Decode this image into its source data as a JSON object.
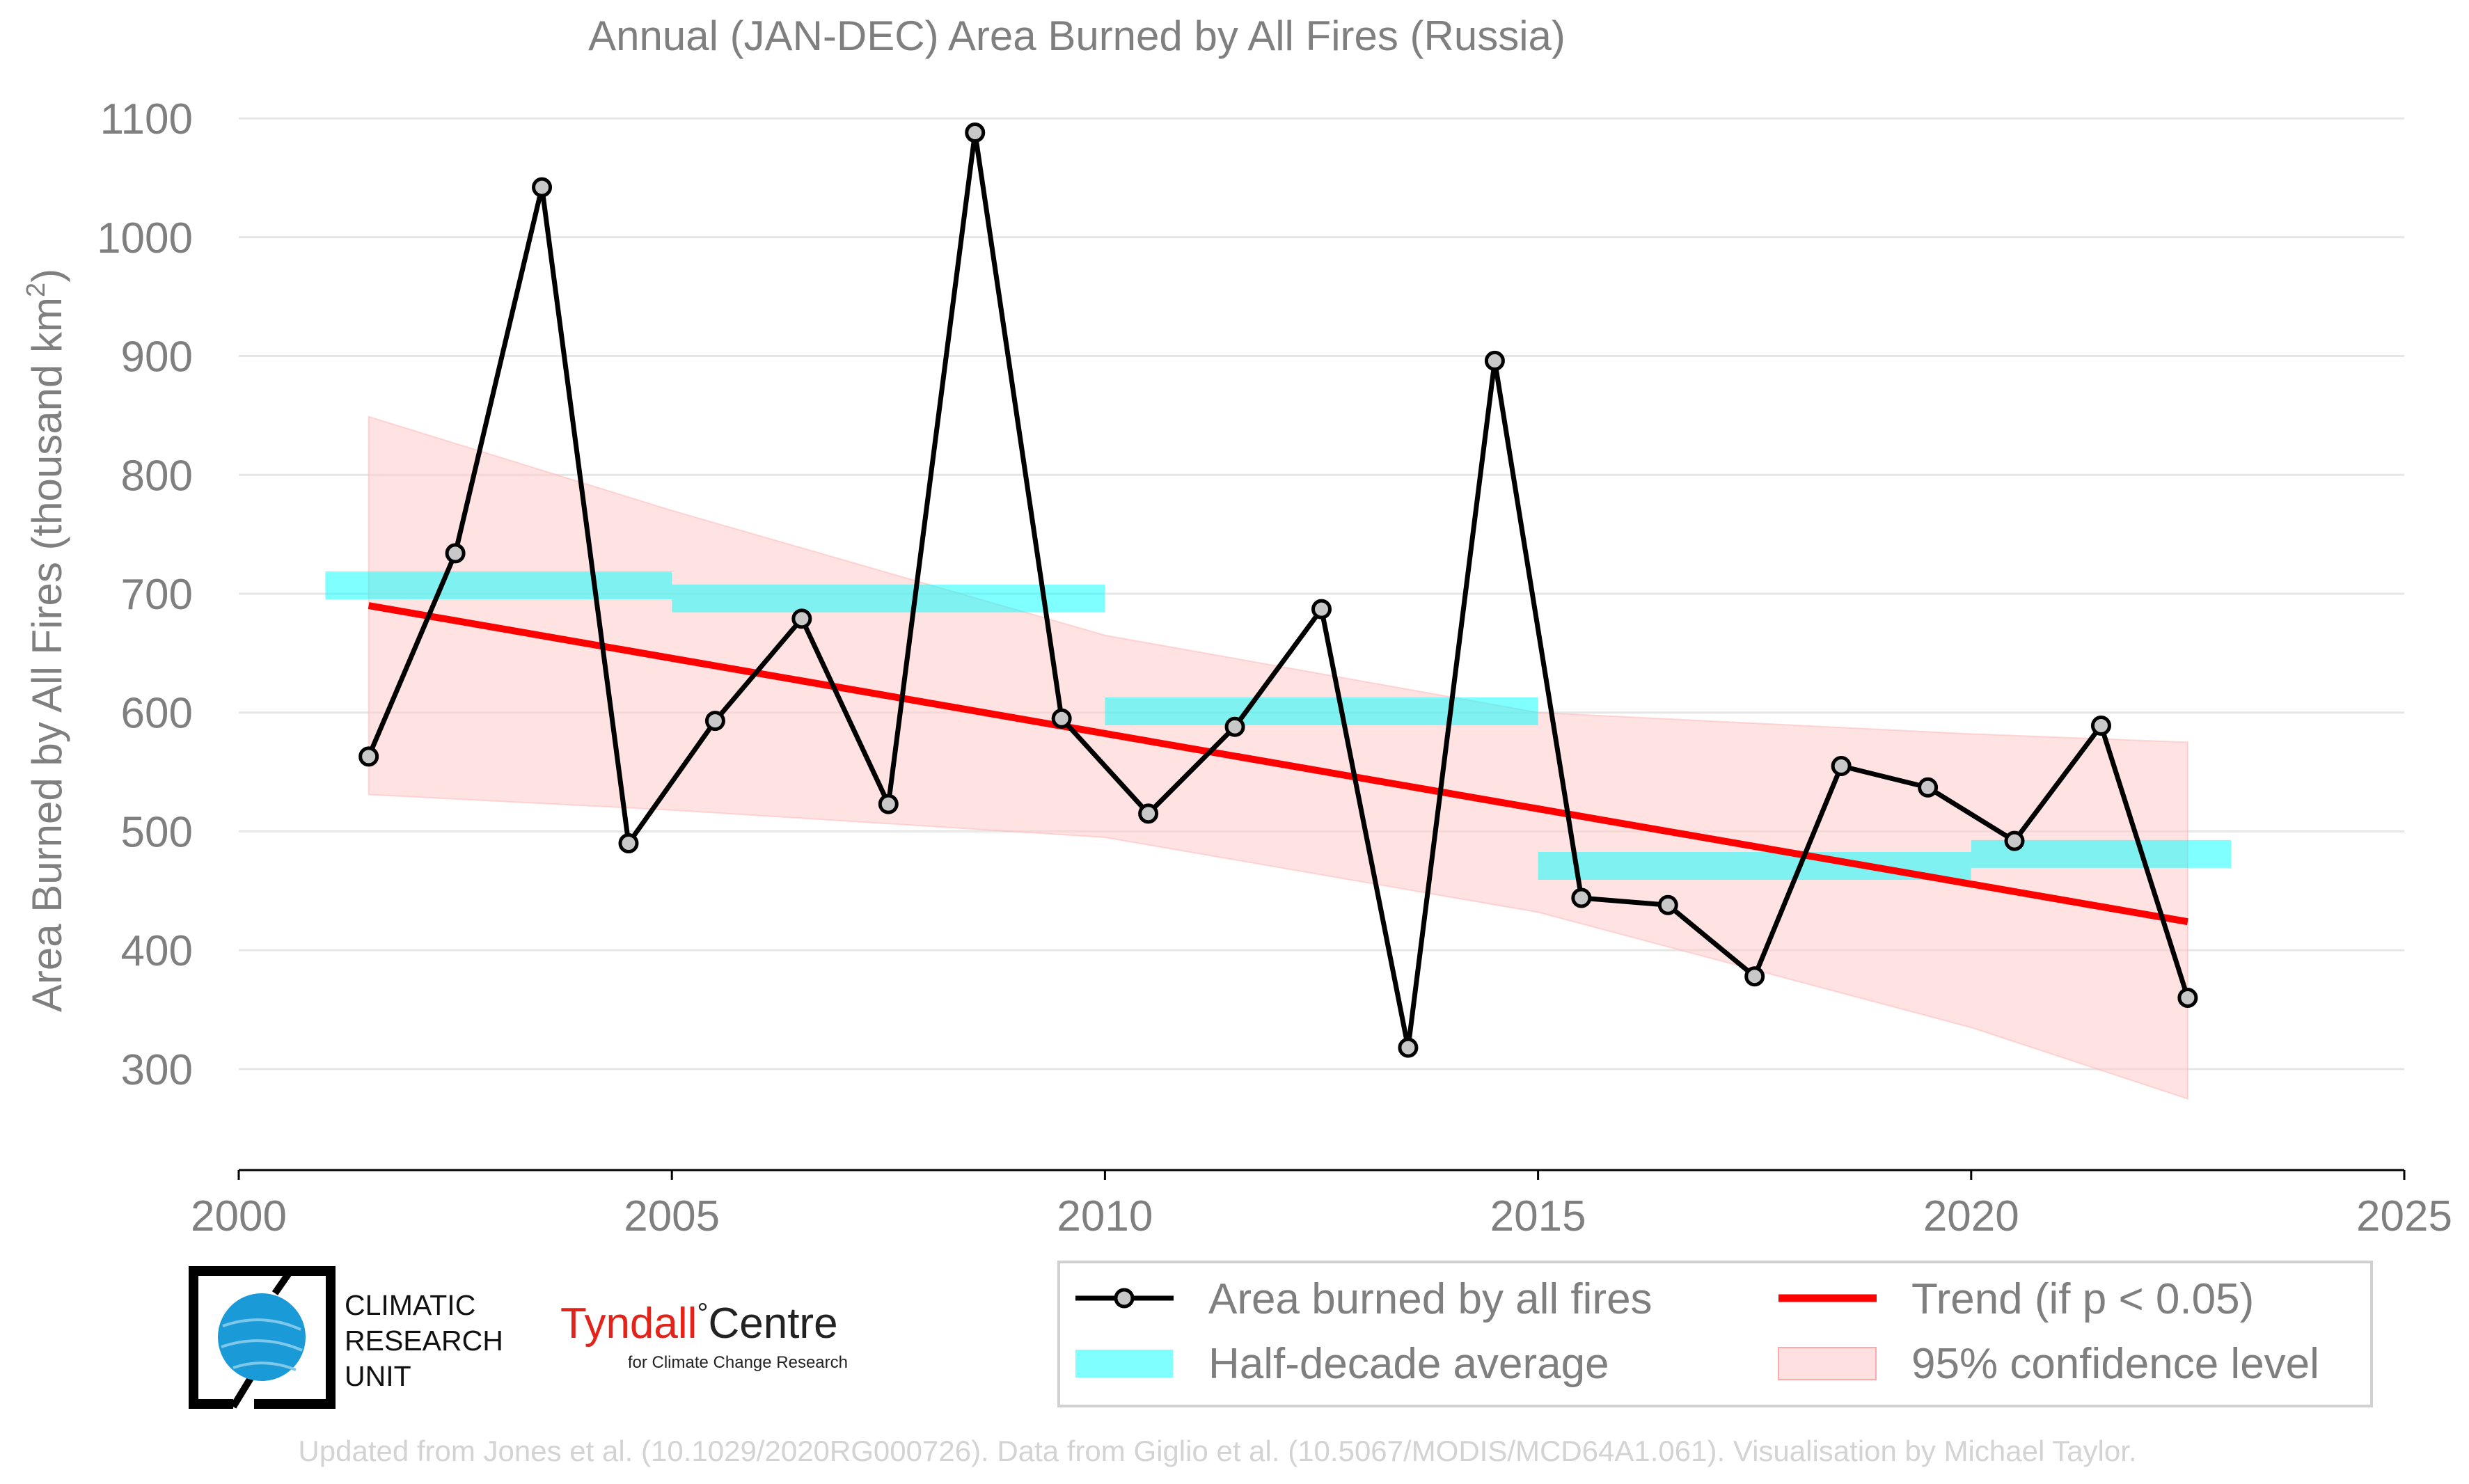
{
  "chart_data": {
    "type": "line",
    "title": "Annual (JAN-DEC) Area Burned by All Fires (Russia)",
    "ylabel_main": "Area Burned by All Fires (thousand km",
    "ylabel_sup": "2",
    "ylabel_close": ")",
    "xlim": [
      2000,
      2025
    ],
    "ylim": [
      215,
      1110
    ],
    "xticks": [
      "2000",
      "2005",
      "2010",
      "2015",
      "2020",
      "2025"
    ],
    "yticks": [
      "300",
      "400",
      "500",
      "600",
      "700",
      "800",
      "900",
      "1000",
      "1100"
    ],
    "grid": "horizontal",
    "series": [
      {
        "name": "Area burned by all fires",
        "color": "#000000",
        "marker_fill": "#c8c8c8",
        "x": [
          2001.5,
          2002.5,
          2003.5,
          2004.5,
          2005.5,
          2006.5,
          2007.5,
          2008.5,
          2009.5,
          2010.5,
          2011.5,
          2012.5,
          2013.5,
          2014.5,
          2015.5,
          2016.5,
          2017.5,
          2018.5,
          2019.5,
          2020.5,
          2021.5,
          2022.5
        ],
        "values": [
          563,
          734,
          1042,
          490,
          593,
          679,
          523,
          1088,
          595,
          515,
          588,
          687,
          318,
          896,
          444,
          438,
          378,
          555,
          537,
          492,
          589,
          360
        ]
      }
    ],
    "half_decade_average": {
      "name": "Half-decade average",
      "color": "#00ffff",
      "periods": [
        {
          "x0": 2001,
          "x1": 2005,
          "value": 707
        },
        {
          "x0": 2005,
          "x1": 2010,
          "value": 696
        },
        {
          "x0": 2010,
          "x1": 2015,
          "value": 601
        },
        {
          "x0": 2015,
          "x1": 2020,
          "value": 471
        },
        {
          "x0": 2020,
          "x1": 2023,
          "value": 481
        }
      ]
    },
    "trend": {
      "name": "Trend (if p < 0.05)",
      "color": "#ff0000",
      "x": [
        2001.5,
        2022.5
      ],
      "values": [
        690,
        424
      ]
    },
    "confidence": {
      "name": "95% confidence level",
      "color": "#ffcccc",
      "x": [
        2001.5,
        2005,
        2010,
        2015,
        2020,
        2022.5
      ],
      "upper": [
        849,
        770,
        665,
        600,
        582,
        575
      ],
      "lower": [
        531,
        518,
        495,
        432,
        335,
        275
      ]
    },
    "legend_position": "bottom-right"
  },
  "logos": {
    "cru_line1": "CLIMATIC",
    "cru_line2": "RESEARCH",
    "cru_line3": "UNIT",
    "tyndall_name": "Tyndall",
    "tyndall_deg": "°",
    "tyndall_centre": "Centre",
    "tyndall_sub": "for Climate Change Research",
    "tyndall_red": "#e2231a"
  },
  "credit": "Updated from Jones et al. (10.1029/2020RG000726). Data from Giglio et al. (10.5067/MODIS/MCD64A1.061). Visualisation by Michael Taylor."
}
